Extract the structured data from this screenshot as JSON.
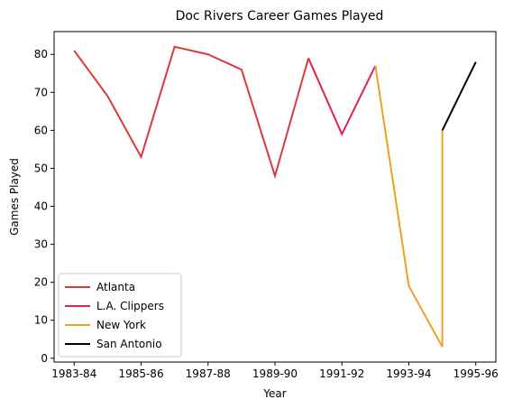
{
  "chart_data": {
    "type": "line",
    "title": "Doc Rivers Career Games Played",
    "xlabel": "Year",
    "ylabel": "Games Played",
    "x_ticks": [
      "1983-84",
      "1985-86",
      "1987-88",
      "1989-90",
      "1991-92",
      "1993-94",
      "1995-96"
    ],
    "x_tick_positions": [
      0,
      2,
      4,
      6,
      8,
      10,
      12
    ],
    "y_ticks": [
      0,
      10,
      20,
      30,
      40,
      50,
      60,
      70,
      80
    ],
    "xlim": [
      -0.6,
      12.6
    ],
    "ylim": [
      -1,
      86
    ],
    "grid": false,
    "legend_position": "lower-left",
    "series": [
      {
        "name": "Atlanta",
        "color": "#d93a3a",
        "x": [
          0,
          1,
          2,
          3,
          4,
          5,
          6,
          7
        ],
        "y": [
          81,
          69,
          53,
          82,
          80,
          76,
          48,
          79
        ]
      },
      {
        "name": "L.A. Clippers",
        "color": "#e0244a",
        "x": [
          7,
          8,
          9
        ],
        "y": [
          79,
          59,
          77
        ]
      },
      {
        "name": "New York",
        "color": "#f0a020",
        "x": [
          9,
          10,
          11,
          11
        ],
        "y": [
          77,
          19,
          3,
          60
        ]
      },
      {
        "name": "San Antonio",
        "color": "#000000",
        "x": [
          11,
          12
        ],
        "y": [
          60,
          78
        ]
      }
    ]
  }
}
